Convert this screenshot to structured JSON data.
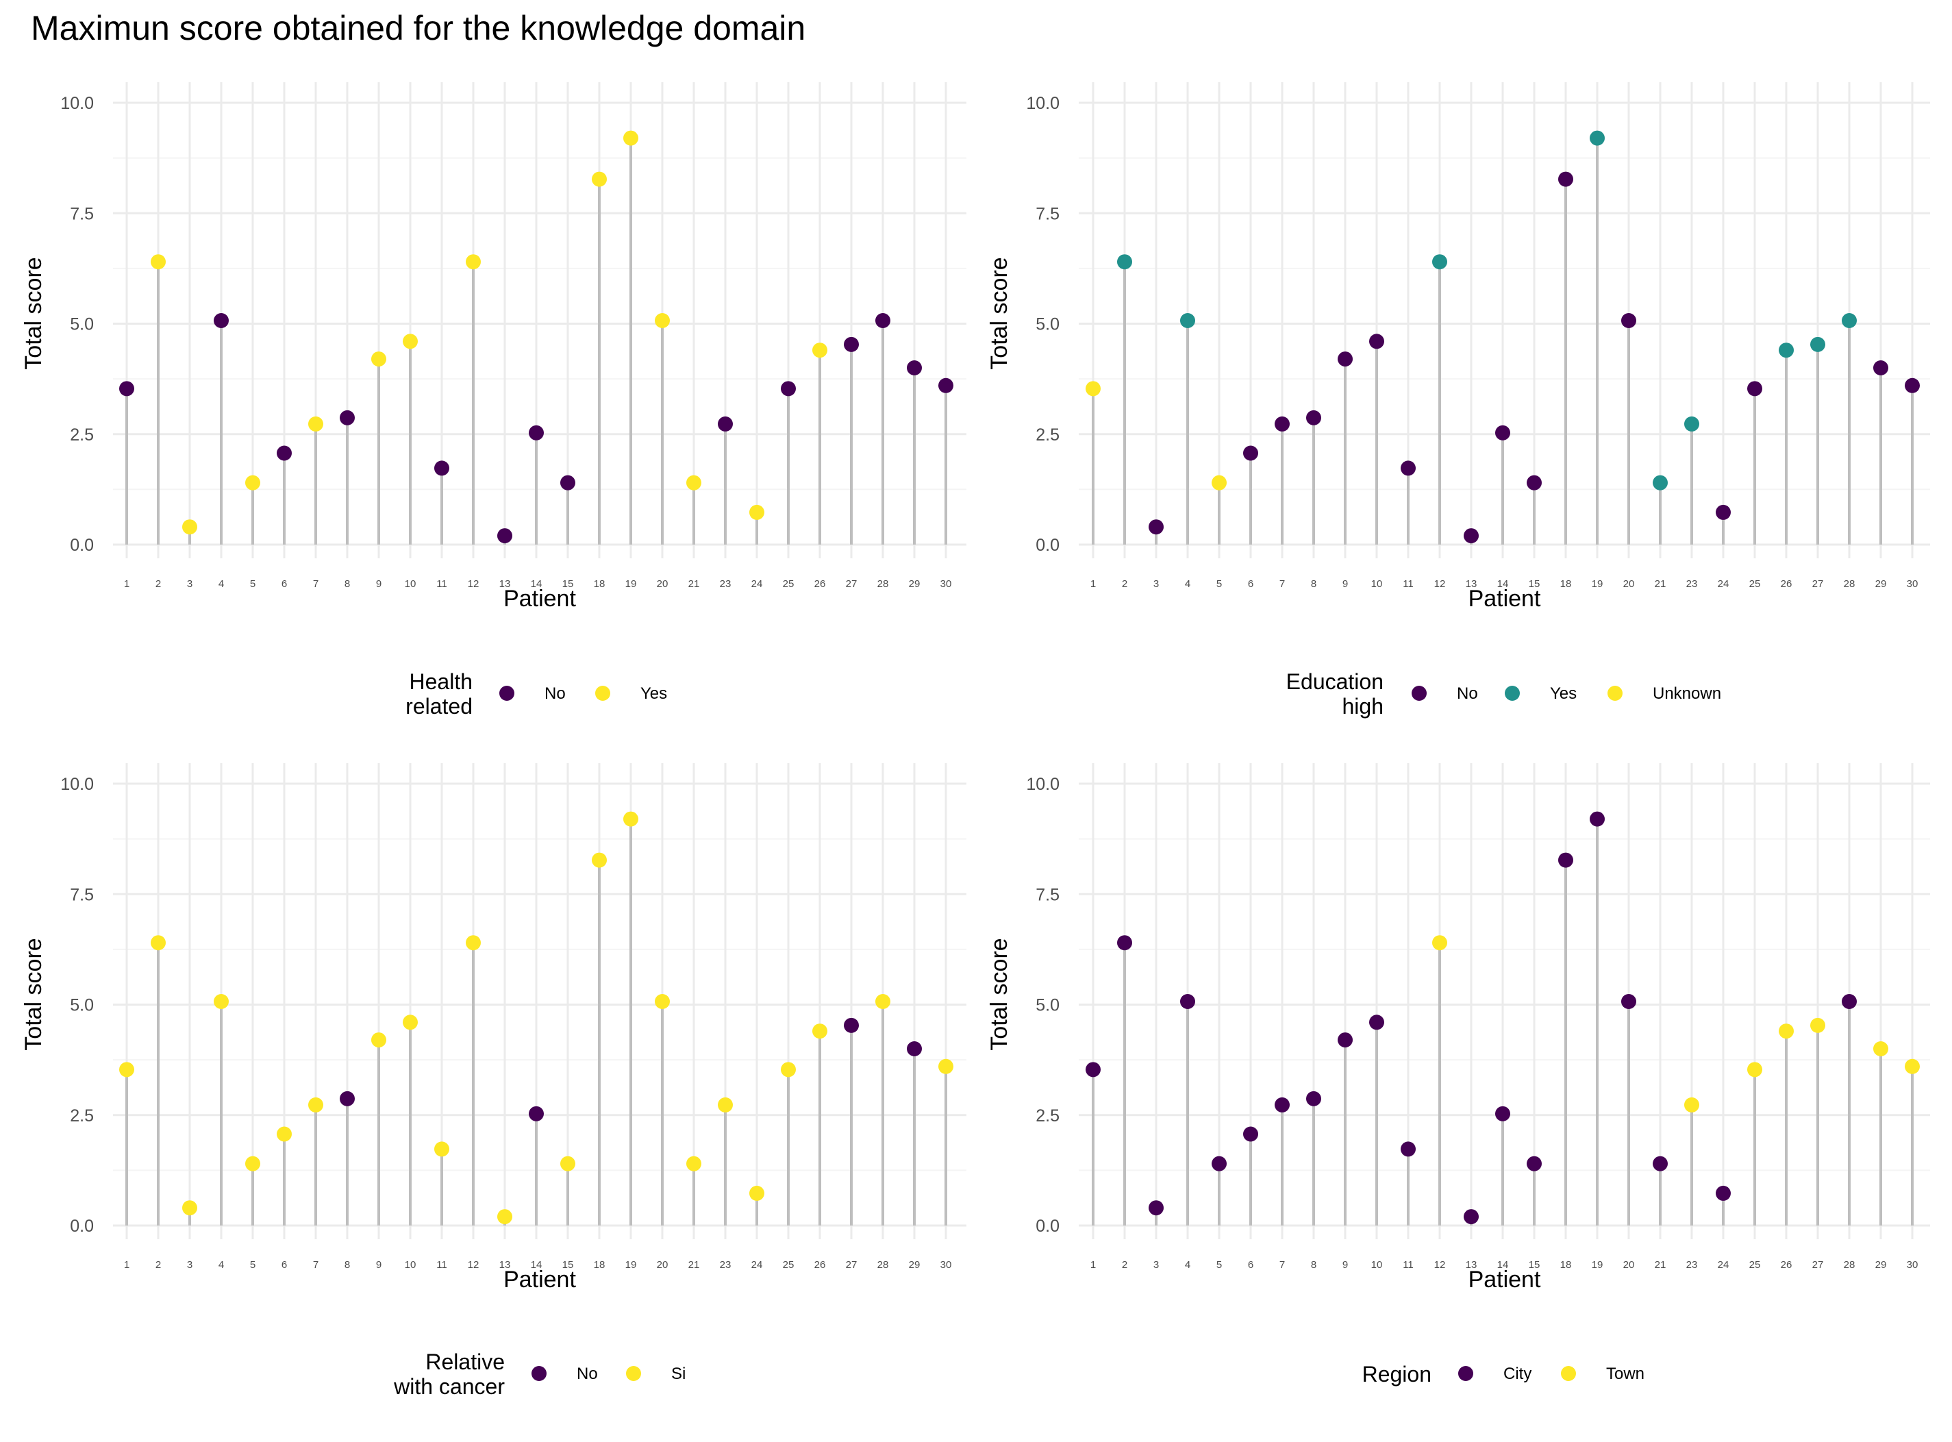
{
  "figure": {
    "title": "Maximun score obtained for the knowledge domain"
  },
  "colors": {
    "purple": "#440154",
    "teal": "#21918C",
    "yellow": "#FDE725",
    "stem": "#BEBEBE",
    "grid_major": "#EBEBEB",
    "grid_minor": "#F4F4F4"
  },
  "chart_data": [
    {
      "type": "lollipop",
      "xlabel": "Patient",
      "ylabel": "Total score",
      "ylim": [
        0,
        10
      ],
      "yticks": [
        "0.0",
        "2.5",
        "5.0",
        "7.5",
        "10.0"
      ],
      "categories": [
        "1",
        "2",
        "3",
        "4",
        "5",
        "6",
        "7",
        "8",
        "9",
        "10",
        "11",
        "12",
        "13",
        "14",
        "15",
        "18",
        "19",
        "20",
        "21",
        "23",
        "24",
        "25",
        "26",
        "27",
        "28",
        "29",
        "30"
      ],
      "values": [
        3.53,
        6.4,
        0.4,
        5.07,
        1.4,
        2.07,
        2.73,
        2.87,
        4.2,
        4.6,
        1.73,
        6.4,
        0.2,
        2.53,
        1.4,
        8.27,
        9.2,
        5.07,
        1.4,
        2.73,
        0.73,
        3.53,
        4.4,
        4.53,
        5.07,
        4.0,
        3.6
      ],
      "groups": [
        "No",
        "Yes",
        "Yes",
        "No",
        "Yes",
        "No",
        "Yes",
        "No",
        "Yes",
        "Yes",
        "No",
        "Yes",
        "No",
        "No",
        "No",
        "Yes",
        "Yes",
        "Yes",
        "Yes",
        "No",
        "Yes",
        "No",
        "Yes",
        "No",
        "No",
        "No",
        "No"
      ],
      "legend": {
        "title": [
          "Health",
          "related"
        ],
        "entries": [
          {
            "label": "No",
            "color": "#440154"
          },
          {
            "label": "Yes",
            "color": "#FDE725"
          }
        ]
      }
    },
    {
      "type": "lollipop",
      "xlabel": "Patient",
      "ylabel": "Total score",
      "ylim": [
        0,
        10
      ],
      "yticks": [
        "0.0",
        "2.5",
        "5.0",
        "7.5",
        "10.0"
      ],
      "categories": [
        "1",
        "2",
        "3",
        "4",
        "5",
        "6",
        "7",
        "8",
        "9",
        "10",
        "11",
        "12",
        "13",
        "14",
        "15",
        "18",
        "19",
        "20",
        "21",
        "23",
        "24",
        "25",
        "26",
        "27",
        "28",
        "29",
        "30"
      ],
      "values": [
        3.53,
        6.4,
        0.4,
        5.07,
        1.4,
        2.07,
        2.73,
        2.87,
        4.2,
        4.6,
        1.73,
        6.4,
        0.2,
        2.53,
        1.4,
        8.27,
        9.2,
        5.07,
        1.4,
        2.73,
        0.73,
        3.53,
        4.4,
        4.53,
        5.07,
        4.0,
        3.6
      ],
      "groups": [
        "Unknown",
        "Yes",
        "No",
        "Yes",
        "Unknown",
        "No",
        "No",
        "No",
        "No",
        "No",
        "No",
        "Yes",
        "No",
        "No",
        "No",
        "No",
        "Yes",
        "No",
        "Yes",
        "Yes",
        "No",
        "No",
        "Yes",
        "Yes",
        "Yes",
        "No",
        "No"
      ],
      "legend": {
        "title": [
          "Education",
          "high"
        ],
        "entries": [
          {
            "label": "No",
            "color": "#440154"
          },
          {
            "label": "Yes",
            "color": "#21918C"
          },
          {
            "label": "Unknown",
            "color": "#FDE725"
          }
        ]
      }
    },
    {
      "type": "lollipop",
      "xlabel": "Patient",
      "ylabel": "Total score",
      "ylim": [
        0,
        10
      ],
      "yticks": [
        "0.0",
        "2.5",
        "5.0",
        "7.5",
        "10.0"
      ],
      "categories": [
        "1",
        "2",
        "3",
        "4",
        "5",
        "6",
        "7",
        "8",
        "9",
        "10",
        "11",
        "12",
        "13",
        "14",
        "15",
        "18",
        "19",
        "20",
        "21",
        "23",
        "24",
        "25",
        "26",
        "27",
        "28",
        "29",
        "30"
      ],
      "values": [
        3.53,
        6.4,
        0.4,
        5.07,
        1.4,
        2.07,
        2.73,
        2.87,
        4.2,
        4.6,
        1.73,
        6.4,
        0.2,
        2.53,
        1.4,
        8.27,
        9.2,
        5.07,
        1.4,
        2.73,
        0.73,
        3.53,
        4.4,
        4.53,
        5.07,
        4.0,
        3.6
      ],
      "groups": [
        "Si",
        "Si",
        "Si",
        "Si",
        "Si",
        "Si",
        "Si",
        "No",
        "Si",
        "Si",
        "Si",
        "Si",
        "Si",
        "No",
        "Si",
        "Si",
        "Si",
        "Si",
        "Si",
        "Si",
        "Si",
        "Si",
        "Si",
        "No",
        "Si",
        "No",
        "Si"
      ],
      "legend": {
        "title": [
          "Relative",
          "with cancer"
        ],
        "entries": [
          {
            "label": "No",
            "color": "#440154"
          },
          {
            "label": "Si",
            "color": "#FDE725"
          }
        ]
      }
    },
    {
      "type": "lollipop",
      "xlabel": "Patient",
      "ylabel": "Total score",
      "ylim": [
        0,
        10
      ],
      "yticks": [
        "0.0",
        "2.5",
        "5.0",
        "7.5",
        "10.0"
      ],
      "categories": [
        "1",
        "2",
        "3",
        "4",
        "5",
        "6",
        "7",
        "8",
        "9",
        "10",
        "11",
        "12",
        "13",
        "14",
        "15",
        "18",
        "19",
        "20",
        "21",
        "23",
        "24",
        "25",
        "26",
        "27",
        "28",
        "29",
        "30"
      ],
      "values": [
        3.53,
        6.4,
        0.4,
        5.07,
        1.4,
        2.07,
        2.73,
        2.87,
        4.2,
        4.6,
        1.73,
        6.4,
        0.2,
        2.53,
        1.4,
        8.27,
        9.2,
        5.07,
        1.4,
        2.73,
        0.73,
        3.53,
        4.4,
        4.53,
        5.07,
        4.0,
        3.6
      ],
      "groups": [
        "City",
        "City",
        "City",
        "City",
        "City",
        "City",
        "City",
        "City",
        "City",
        "City",
        "City",
        "Town",
        "City",
        "City",
        "City",
        "City",
        "City",
        "City",
        "City",
        "Town",
        "City",
        "Town",
        "Town",
        "Town",
        "City",
        "Town",
        "Town"
      ],
      "legend": {
        "title": [
          "Region"
        ],
        "entries": [
          {
            "label": "City",
            "color": "#440154"
          },
          {
            "label": "Town",
            "color": "#FDE725"
          }
        ]
      }
    }
  ]
}
